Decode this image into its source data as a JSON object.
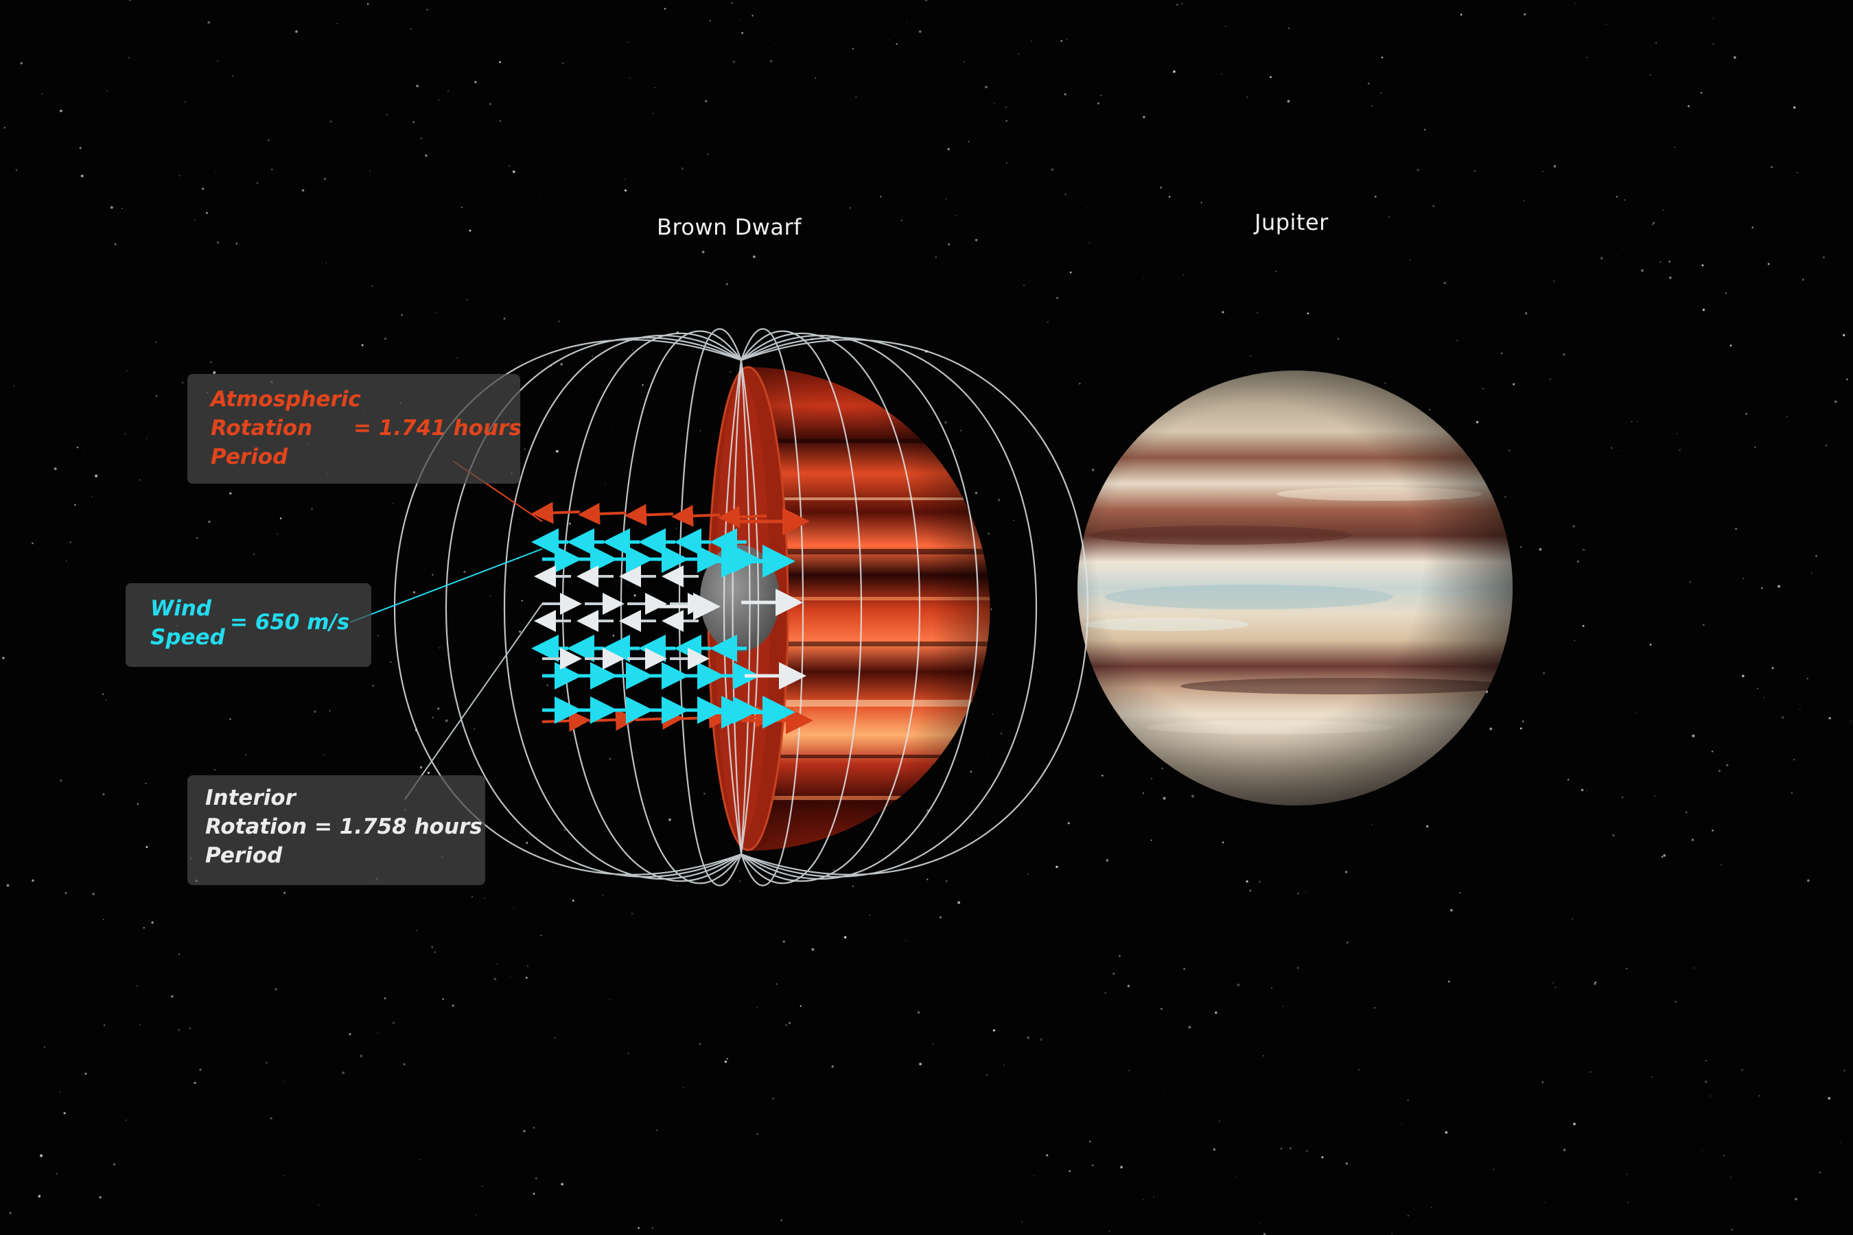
{
  "titles": {
    "brown_dwarf": "Brown Dwarf",
    "jupiter": "Jupiter"
  },
  "atmospheric": {
    "line1": "Atmospheric",
    "line2": "Rotation",
    "line3": "Period",
    "value": "= 1.741 hours"
  },
  "wind": {
    "line1": "Wind",
    "line2": "Speed",
    "value": "= 650 m/s"
  },
  "interior": {
    "line1": "Interior",
    "line2": "Rotation = 1.758 hours",
    "line3": "Period"
  },
  "colors": {
    "atmospheric": "#e2451c",
    "wind": "#22dcf0",
    "interior": "#ececec",
    "field_lines": "#dfe6ea",
    "background": "#030303"
  }
}
